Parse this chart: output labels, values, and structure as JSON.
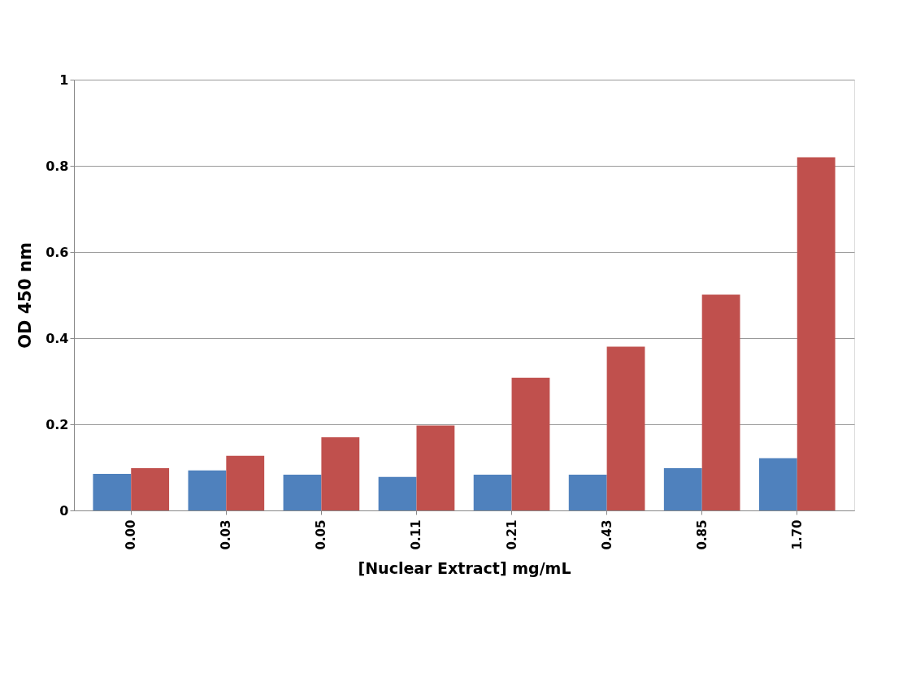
{
  "chart_data": {
    "type": "bar",
    "xlabel": "[Nuclear Extract] mg/mL",
    "ylabel": "OD 450 nm",
    "categories": [
      "0.00",
      "0.03",
      "0.05",
      "0.11",
      "0.21",
      "0.43",
      "0.85",
      "1.70"
    ],
    "series": [
      {
        "color": "#4f81bd",
        "values": [
          0.085,
          0.093,
          0.083,
          0.078,
          0.083,
          0.083,
          0.098,
          0.121
        ]
      },
      {
        "color": "#c0504d",
        "values": [
          0.098,
          0.127,
          0.17,
          0.197,
          0.308,
          0.38,
          0.501,
          0.82
        ]
      }
    ],
    "ylim": [
      0,
      1
    ],
    "yticks": [
      0,
      {
        "value": 0.2,
        "label": "0.2"
      },
      {
        "value": 0.4,
        "label": "0.4"
      },
      {
        "value": 0.6,
        "label": "0.6"
      },
      {
        "value": 0.8,
        "label": "0.8"
      },
      1
    ],
    "grid": "y",
    "legend": false
  }
}
